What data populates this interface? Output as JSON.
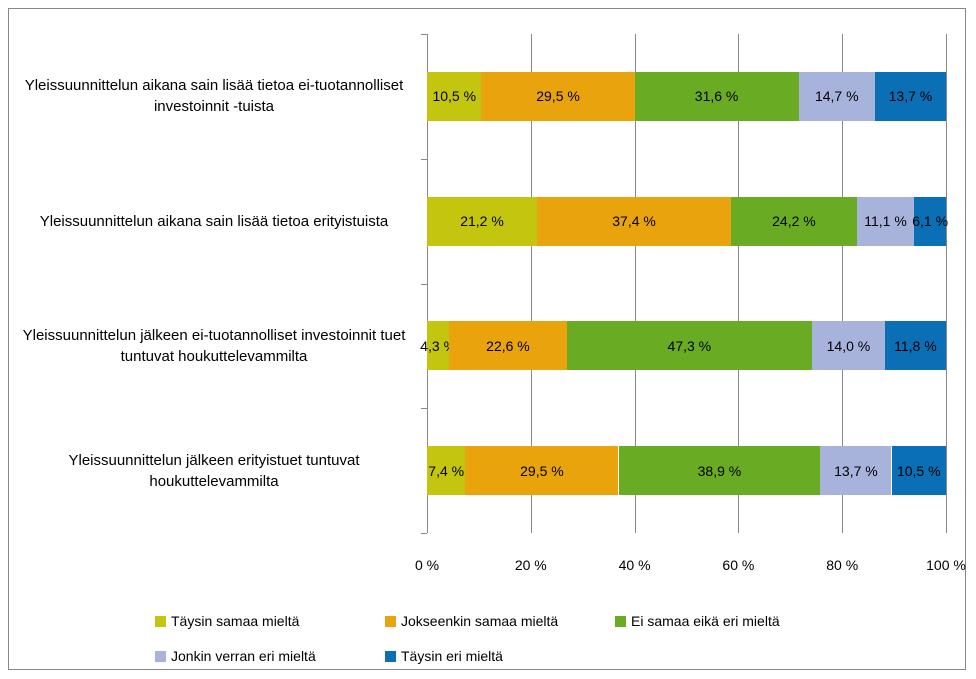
{
  "chart_data": {
    "type": "stacked_bar_horizontal",
    "categories": [
      "Yleissuunnittelun aikana sain lisää tietoa ei-tuotannolliset investoinnit -tuista",
      "Yleissuunnittelun aikana sain lisää tietoa erityistuista",
      "Yleissuunnittelun jälkeen ei-tuotannolliset investoinnit tuet tuntuvat houkuttelevammilta",
      "Yleissuunnittelun jälkeen erityistuet tuntuvat houkuttelevammilta"
    ],
    "series": [
      {
        "name": "Täysin samaa mieltä",
        "color": "#c3c50e",
        "values": [
          10.5,
          21.2,
          4.3,
          7.4
        ],
        "value_labels": [
          "10,5 %",
          "21,2 %",
          "4,3 %",
          "7,4 %"
        ]
      },
      {
        "name": "Jokseenkin samaa mieltä",
        "color": "#e8a30d",
        "values": [
          29.5,
          37.4,
          22.6,
          29.5
        ],
        "value_labels": [
          "29,5 %",
          "37,4 %",
          "22,6 %",
          "29,5 %"
        ]
      },
      {
        "name": "Ei samaa eikä eri mieltä",
        "color": "#6aab24",
        "values": [
          31.6,
          24.2,
          47.3,
          38.9
        ],
        "value_labels": [
          "31,6 %",
          "24,2 %",
          "47,3 %",
          "38,9 %"
        ]
      },
      {
        "name": "Jonkin verran eri mieltä",
        "color": "#a8b3dc",
        "values": [
          14.7,
          11.1,
          14.0,
          13.7
        ],
        "value_labels": [
          "14,7 %",
          "11,1 %",
          "14,0 %",
          "13,7 %"
        ]
      },
      {
        "name": "Täysin eri mieltä",
        "color": "#0b6fb6",
        "values": [
          13.7,
          6.1,
          11.8,
          10.5
        ],
        "value_labels": [
          "13,7 %",
          "6,1 %",
          "11,8 %",
          "10,5 %"
        ]
      }
    ],
    "xlim": [
      0,
      100
    ],
    "xticks": [
      {
        "value": 0,
        "label": "0 %"
      },
      {
        "value": 20,
        "label": "20 %"
      },
      {
        "value": 40,
        "label": "40 %"
      },
      {
        "value": 60,
        "label": "60 %"
      },
      {
        "value": 80,
        "label": "80 %"
      },
      {
        "value": 100,
        "label": "100 %"
      }
    ],
    "grid": true,
    "legend": "bottom"
  }
}
